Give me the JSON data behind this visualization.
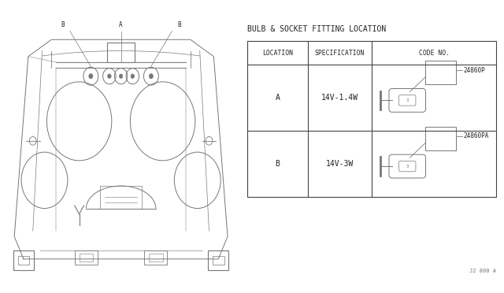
{
  "title": "BULB & SOCKET FITTING LOCATION",
  "table_headers": [
    "LOCATION",
    "SPECIFICATION",
    "CODE NO."
  ],
  "rows": [
    {
      "location": "A",
      "spec": "14V-1.4W",
      "code": "24860P"
    },
    {
      "location": "B",
      "spec": "14V-3W",
      "code": "24860PA"
    }
  ],
  "footer": "J2 800 A",
  "bg_color": "#ffffff",
  "line_color": "#666666",
  "text_color": "#222222",
  "diagram_line_color": "#777777",
  "table_line_color": "#444444"
}
